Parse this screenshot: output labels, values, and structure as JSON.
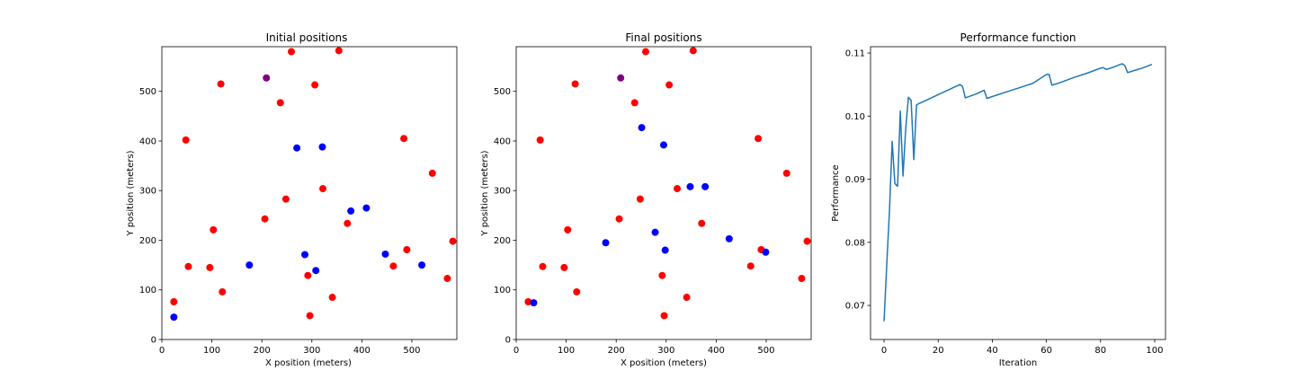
{
  "colors": {
    "red": "#ff0000",
    "blue": "#0000ff",
    "purple": "#800080",
    "line": "#1f77b4"
  },
  "chart_data": [
    {
      "type": "scatter",
      "title": "Initial positions",
      "xlabel": "X position (meters)",
      "ylabel": "Y position (meters)",
      "xlim": [
        0,
        590
      ],
      "ylim": [
        0,
        590
      ],
      "xticks": [
        0,
        100,
        200,
        300,
        400,
        500
      ],
      "yticks": [
        0,
        100,
        200,
        300,
        400,
        500
      ],
      "grid": false,
      "series": [
        {
          "color": "red",
          "points": [
            [
              24,
              76
            ],
            [
              53,
              147
            ],
            [
              48,
              402
            ],
            [
              96,
              145
            ],
            [
              103,
              221
            ],
            [
              118,
              515
            ],
            [
              121,
              96
            ],
            [
              206,
              243
            ],
            [
              237,
              477
            ],
            [
              248,
              283
            ],
            [
              259,
              580
            ],
            [
              292,
              129
            ],
            [
              296,
              48
            ],
            [
              306,
              513
            ],
            [
              322,
              304
            ],
            [
              341,
              85
            ],
            [
              354,
              582
            ],
            [
              371,
              234
            ],
            [
              463,
              148
            ],
            [
              484,
              405
            ],
            [
              490,
              181
            ],
            [
              541,
              335
            ],
            [
              571,
              123
            ],
            [
              582,
              198
            ]
          ]
        },
        {
          "color": "blue",
          "points": [
            [
              24,
              45
            ],
            [
              175,
              150
            ],
            [
              270,
              386
            ],
            [
              286,
              171
            ],
            [
              308,
              139
            ],
            [
              321,
              388
            ],
            [
              378,
              259
            ],
            [
              409,
              265
            ],
            [
              447,
              172
            ],
            [
              520,
              150
            ]
          ]
        },
        {
          "color": "purple",
          "points": [
            [
              209,
              527
            ]
          ]
        }
      ]
    },
    {
      "type": "scatter",
      "title": "Final positions",
      "xlabel": "X position (meters)",
      "ylabel": "Y position (meters)",
      "xlim": [
        0,
        590
      ],
      "ylim": [
        0,
        590
      ],
      "xticks": [
        0,
        100,
        200,
        300,
        400,
        500
      ],
      "yticks": [
        0,
        100,
        200,
        300,
        400,
        500
      ],
      "grid": false,
      "series": [
        {
          "color": "red",
          "points": [
            [
              24,
              76
            ],
            [
              53,
              147
            ],
            [
              48,
              402
            ],
            [
              96,
              145
            ],
            [
              103,
              221
            ],
            [
              118,
              515
            ],
            [
              121,
              96
            ],
            [
              206,
              243
            ],
            [
              237,
              477
            ],
            [
              248,
              283
            ],
            [
              259,
              580
            ],
            [
              292,
              129
            ],
            [
              296,
              48
            ],
            [
              306,
              513
            ],
            [
              322,
              304
            ],
            [
              341,
              85
            ],
            [
              354,
              582
            ],
            [
              371,
              234
            ],
            [
              469,
              148
            ],
            [
              484,
              405
            ],
            [
              490,
              181
            ],
            [
              541,
              335
            ],
            [
              571,
              123
            ],
            [
              582,
              198
            ]
          ]
        },
        {
          "color": "blue",
          "points": [
            [
              35,
              74
            ],
            [
              179,
              195
            ],
            [
              251,
              427
            ],
            [
              278,
              216
            ],
            [
              295,
              392
            ],
            [
              298,
              180
            ],
            [
              348,
              308
            ],
            [
              378,
              308
            ],
            [
              426,
              203
            ],
            [
              499,
              176
            ]
          ]
        },
        {
          "color": "purple",
          "points": [
            [
              209,
              527
            ]
          ]
        }
      ]
    },
    {
      "type": "line",
      "title": "Performance function",
      "xlabel": "Iteration",
      "ylabel": "Performance",
      "xlim": [
        -5,
        104
      ],
      "ylim": [
        0.0646,
        0.111
      ],
      "xticks": [
        0,
        20,
        40,
        60,
        80,
        100
      ],
      "yticks": [
        0.07,
        0.08,
        0.09,
        0.1,
        0.11
      ],
      "ytick_labels": [
        "0.07",
        "0.08",
        "0.09",
        "0.10",
        "0.11"
      ],
      "grid": false,
      "series": [
        {
          "color": "line",
          "x": [
            0,
            1,
            2,
            3,
            4,
            5,
            6,
            7,
            8,
            9,
            10,
            11,
            12,
            13,
            14,
            16,
            18,
            20,
            22,
            24,
            26,
            28,
            29,
            30,
            32,
            34,
            37,
            38,
            40,
            45,
            50,
            55,
            60,
            61,
            62,
            65,
            70,
            75,
            80,
            81,
            82,
            83,
            85,
            88,
            89,
            90,
            93,
            96,
            99
          ],
          "y": [
            0.0675,
            0.0765,
            0.085,
            0.096,
            0.0893,
            0.0889,
            0.1008,
            0.0905,
            0.098,
            0.103,
            0.1025,
            0.0931,
            0.1018,
            0.102,
            0.1022,
            0.1026,
            0.103,
            0.1034,
            0.1038,
            0.1042,
            0.1046,
            0.105,
            0.1047,
            0.1029,
            0.1032,
            0.1035,
            0.1041,
            0.1028,
            0.1031,
            0.1038,
            0.1045,
            0.1052,
            0.1066,
            0.1066,
            0.1049,
            0.1053,
            0.1061,
            0.1068,
            0.1076,
            0.1077,
            0.1074,
            0.1075,
            0.1078,
            0.1083,
            0.108,
            0.1069,
            0.1073,
            0.1077,
            0.1082
          ]
        }
      ]
    }
  ]
}
